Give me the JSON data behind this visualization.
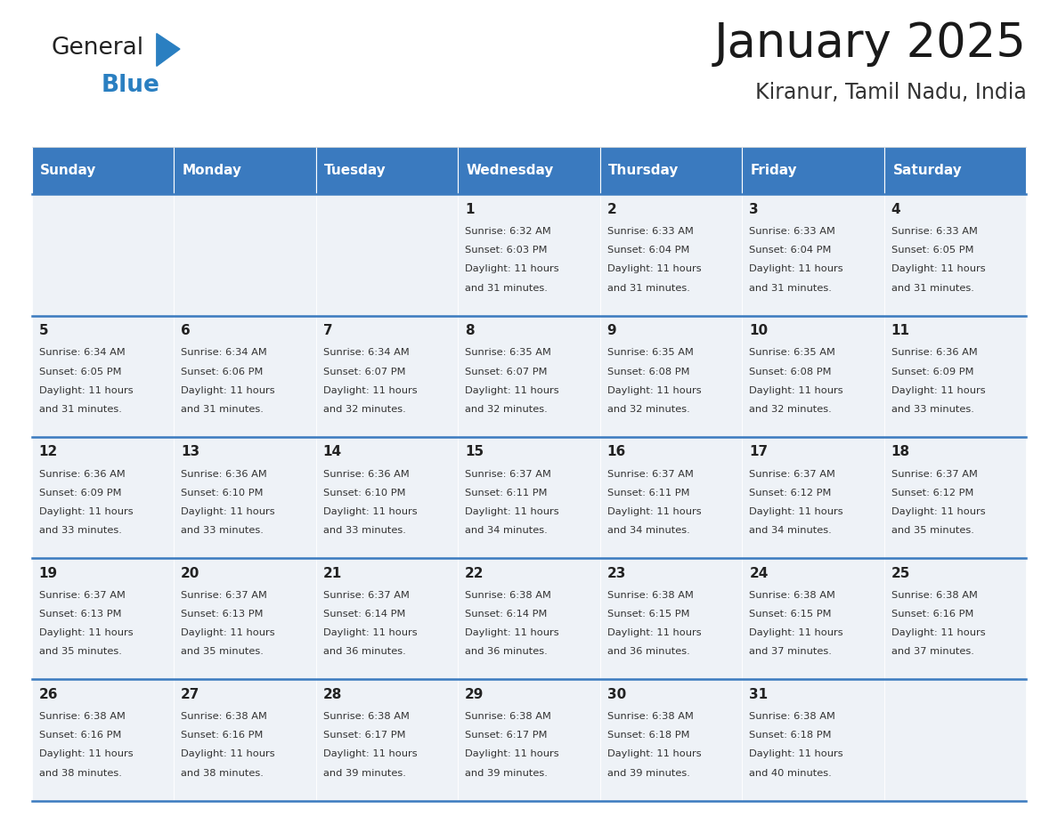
{
  "title": "January 2025",
  "subtitle": "Kiranur, Tamil Nadu, India",
  "header_color": "#3a7abf",
  "header_text_color": "#ffffff",
  "cell_bg_color": "#eef2f7",
  "day_text_color": "#222222",
  "info_text_color": "#333333",
  "grid_line_color": "#3a7abf",
  "days_of_week": [
    "Sunday",
    "Monday",
    "Tuesday",
    "Wednesday",
    "Thursday",
    "Friday",
    "Saturday"
  ],
  "weeks": [
    [
      {
        "day": "",
        "sunrise": "",
        "sunset": "",
        "daylight": ""
      },
      {
        "day": "",
        "sunrise": "",
        "sunset": "",
        "daylight": ""
      },
      {
        "day": "",
        "sunrise": "",
        "sunset": "",
        "daylight": ""
      },
      {
        "day": "1",
        "sunrise": "6:32 AM",
        "sunset": "6:03 PM",
        "daylight": "11 hours and 31 minutes."
      },
      {
        "day": "2",
        "sunrise": "6:33 AM",
        "sunset": "6:04 PM",
        "daylight": "11 hours and 31 minutes."
      },
      {
        "day": "3",
        "sunrise": "6:33 AM",
        "sunset": "6:04 PM",
        "daylight": "11 hours and 31 minutes."
      },
      {
        "day": "4",
        "sunrise": "6:33 AM",
        "sunset": "6:05 PM",
        "daylight": "11 hours and 31 minutes."
      }
    ],
    [
      {
        "day": "5",
        "sunrise": "6:34 AM",
        "sunset": "6:05 PM",
        "daylight": "11 hours and 31 minutes."
      },
      {
        "day": "6",
        "sunrise": "6:34 AM",
        "sunset": "6:06 PM",
        "daylight": "11 hours and 31 minutes."
      },
      {
        "day": "7",
        "sunrise": "6:34 AM",
        "sunset": "6:07 PM",
        "daylight": "11 hours and 32 minutes."
      },
      {
        "day": "8",
        "sunrise": "6:35 AM",
        "sunset": "6:07 PM",
        "daylight": "11 hours and 32 minutes."
      },
      {
        "day": "9",
        "sunrise": "6:35 AM",
        "sunset": "6:08 PM",
        "daylight": "11 hours and 32 minutes."
      },
      {
        "day": "10",
        "sunrise": "6:35 AM",
        "sunset": "6:08 PM",
        "daylight": "11 hours and 32 minutes."
      },
      {
        "day": "11",
        "sunrise": "6:36 AM",
        "sunset": "6:09 PM",
        "daylight": "11 hours and 33 minutes."
      }
    ],
    [
      {
        "day": "12",
        "sunrise": "6:36 AM",
        "sunset": "6:09 PM",
        "daylight": "11 hours and 33 minutes."
      },
      {
        "day": "13",
        "sunrise": "6:36 AM",
        "sunset": "6:10 PM",
        "daylight": "11 hours and 33 minutes."
      },
      {
        "day": "14",
        "sunrise": "6:36 AM",
        "sunset": "6:10 PM",
        "daylight": "11 hours and 33 minutes."
      },
      {
        "day": "15",
        "sunrise": "6:37 AM",
        "sunset": "6:11 PM",
        "daylight": "11 hours and 34 minutes."
      },
      {
        "day": "16",
        "sunrise": "6:37 AM",
        "sunset": "6:11 PM",
        "daylight": "11 hours and 34 minutes."
      },
      {
        "day": "17",
        "sunrise": "6:37 AM",
        "sunset": "6:12 PM",
        "daylight": "11 hours and 34 minutes."
      },
      {
        "day": "18",
        "sunrise": "6:37 AM",
        "sunset": "6:12 PM",
        "daylight": "11 hours and 35 minutes."
      }
    ],
    [
      {
        "day": "19",
        "sunrise": "6:37 AM",
        "sunset": "6:13 PM",
        "daylight": "11 hours and 35 minutes."
      },
      {
        "day": "20",
        "sunrise": "6:37 AM",
        "sunset": "6:13 PM",
        "daylight": "11 hours and 35 minutes."
      },
      {
        "day": "21",
        "sunrise": "6:37 AM",
        "sunset": "6:14 PM",
        "daylight": "11 hours and 36 minutes."
      },
      {
        "day": "22",
        "sunrise": "6:38 AM",
        "sunset": "6:14 PM",
        "daylight": "11 hours and 36 minutes."
      },
      {
        "day": "23",
        "sunrise": "6:38 AM",
        "sunset": "6:15 PM",
        "daylight": "11 hours and 36 minutes."
      },
      {
        "day": "24",
        "sunrise": "6:38 AM",
        "sunset": "6:15 PM",
        "daylight": "11 hours and 37 minutes."
      },
      {
        "day": "25",
        "sunrise": "6:38 AM",
        "sunset": "6:16 PM",
        "daylight": "11 hours and 37 minutes."
      }
    ],
    [
      {
        "day": "26",
        "sunrise": "6:38 AM",
        "sunset": "6:16 PM",
        "daylight": "11 hours and 38 minutes."
      },
      {
        "day": "27",
        "sunrise": "6:38 AM",
        "sunset": "6:16 PM",
        "daylight": "11 hours and 38 minutes."
      },
      {
        "day": "28",
        "sunrise": "6:38 AM",
        "sunset": "6:17 PM",
        "daylight": "11 hours and 39 minutes."
      },
      {
        "day": "29",
        "sunrise": "6:38 AM",
        "sunset": "6:17 PM",
        "daylight": "11 hours and 39 minutes."
      },
      {
        "day": "30",
        "sunrise": "6:38 AM",
        "sunset": "6:18 PM",
        "daylight": "11 hours and 39 minutes."
      },
      {
        "day": "31",
        "sunrise": "6:38 AM",
        "sunset": "6:18 PM",
        "daylight": "11 hours and 40 minutes."
      },
      {
        "day": "",
        "sunrise": "",
        "sunset": "",
        "daylight": ""
      }
    ]
  ],
  "logo_general_color": "#222222",
  "logo_blue_color": "#2a7fc1",
  "logo_triangle_color": "#2a7fc1",
  "title_fontsize": 38,
  "subtitle_fontsize": 17,
  "header_fontsize": 11,
  "day_number_fontsize": 11,
  "info_fontsize": 8.2
}
